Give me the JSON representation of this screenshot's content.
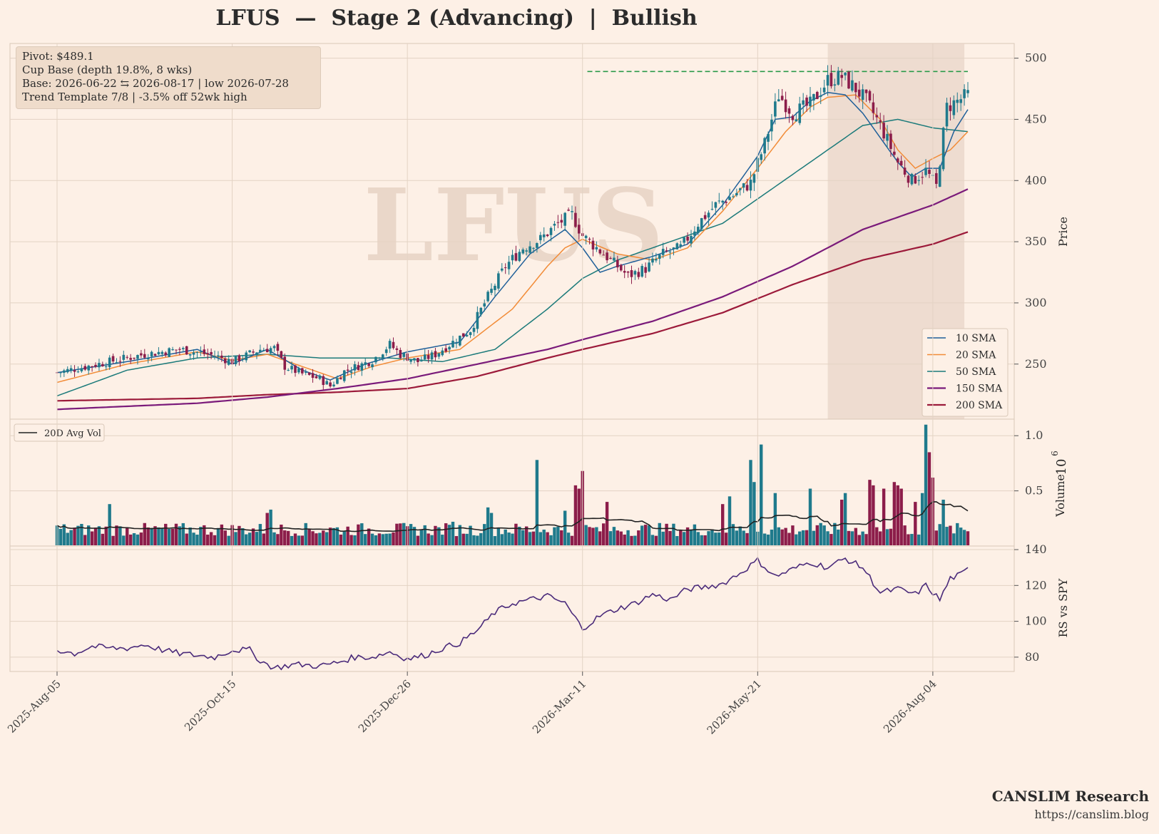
{
  "title": "LFUS  —  Stage 2 (Advancing)  |  Bullish",
  "watermark": "LFUS",
  "info_box": {
    "line1": "Pivot: $489.1",
    "line2": "Cup Base  (depth 19.8%, 8 wks)",
    "line3": "Base: 2026-06-22 ⇆ 2026-08-17  |  low 2026-07-28",
    "line4": "Trend Template 7/8  |  -3.5% off 52wk high"
  },
  "brand": {
    "name": "CANSLIM Research",
    "url": "https://canslim.blog"
  },
  "colors": {
    "background": "#fdf0e6",
    "up_candle": "#1f7a8c",
    "down_candle": "#8c1d4a",
    "sma10": "#1f5f99",
    "sma20": "#f28c38",
    "sma50": "#1b7a7a",
    "sma150": "#7a1a7a",
    "sma200": "#9c1a3a",
    "pivot_line": "#2a9a4a",
    "rs_line": "#4a2a7a",
    "avg_vol": "#222222",
    "base_shade": "#e8d6c8"
  },
  "chart_data": {
    "type": "candlestick",
    "x_ticks": [
      "2025-Aug-05",
      "2025-Oct-15",
      "2025-Dec-26",
      "2026-Mar-11",
      "2026-May-21",
      "2026-Aug-04"
    ],
    "x_tick_positions": [
      0,
      50,
      100,
      150,
      200,
      250
    ],
    "price_panel": {
      "ylabel": "Price",
      "ylim": [
        205,
        512
      ],
      "yticks": [
        250,
        300,
        350,
        400,
        450,
        500
      ],
      "pivot": 489.1,
      "base_shade_index_range": [
        220,
        259
      ],
      "price_anchors": [
        [
          0,
          243
        ],
        [
          15,
          252
        ],
        [
          25,
          258
        ],
        [
          35,
          262
        ],
        [
          45,
          257
        ],
        [
          50,
          252
        ],
        [
          58,
          262
        ],
        [
          62,
          263
        ],
        [
          65,
          248
        ],
        [
          70,
          242
        ],
        [
          75,
          238
        ],
        [
          78,
          232
        ],
        [
          82,
          244
        ],
        [
          90,
          253
        ],
        [
          95,
          266
        ],
        [
          98,
          258
        ],
        [
          103,
          252
        ],
        [
          108,
          258
        ],
        [
          113,
          268
        ],
        [
          118,
          278
        ],
        [
          123,
          305
        ],
        [
          128,
          330
        ],
        [
          133,
          345
        ],
        [
          138,
          352
        ],
        [
          143,
          365
        ],
        [
          147,
          372
        ],
        [
          150,
          355
        ],
        [
          154,
          345
        ],
        [
          158,
          335
        ],
        [
          163,
          322
        ],
        [
          168,
          328
        ],
        [
          173,
          340
        ],
        [
          178,
          345
        ],
        [
          183,
          365
        ],
        [
          188,
          380
        ],
        [
          193,
          388
        ],
        [
          198,
          398
        ],
        [
          202,
          430
        ],
        [
          206,
          470
        ],
        [
          210,
          455
        ],
        [
          215,
          462
        ],
        [
          220,
          482
        ],
        [
          224,
          485
        ],
        [
          228,
          475
        ],
        [
          231,
          465
        ],
        [
          235,
          445
        ],
        [
          240,
          415
        ],
        [
          244,
          400
        ],
        [
          248,
          408
        ],
        [
          251,
          395
        ],
        [
          254,
          460
        ],
        [
          257,
          465
        ],
        [
          260,
          470
        ]
      ],
      "sma10_anchors": [
        [
          0,
          243
        ],
        [
          20,
          252
        ],
        [
          40,
          262
        ],
        [
          50,
          250
        ],
        [
          60,
          262
        ],
        [
          70,
          245
        ],
        [
          78,
          237
        ],
        [
          88,
          250
        ],
        [
          100,
          260
        ],
        [
          115,
          268
        ],
        [
          125,
          305
        ],
        [
          135,
          340
        ],
        [
          145,
          360
        ],
        [
          150,
          345
        ],
        [
          155,
          325
        ],
        [
          160,
          330
        ],
        [
          170,
          338
        ],
        [
          180,
          348
        ],
        [
          190,
          380
        ],
        [
          200,
          420
        ],
        [
          205,
          450
        ],
        [
          210,
          452
        ],
        [
          215,
          465
        ],
        [
          220,
          472
        ],
        [
          225,
          470
        ],
        [
          230,
          455
        ],
        [
          235,
          435
        ],
        [
          240,
          415
        ],
        [
          244,
          403
        ],
        [
          248,
          410
        ],
        [
          252,
          410
        ],
        [
          256,
          440
        ],
        [
          260,
          458
        ]
      ],
      "sma20_anchors": [
        [
          0,
          235
        ],
        [
          20,
          250
        ],
        [
          40,
          260
        ],
        [
          50,
          253
        ],
        [
          60,
          258
        ],
        [
          70,
          248
        ],
        [
          80,
          238
        ],
        [
          90,
          248
        ],
        [
          100,
          255
        ],
        [
          115,
          262
        ],
        [
          130,
          295
        ],
        [
          140,
          330
        ],
        [
          145,
          345
        ],
        [
          150,
          352
        ],
        [
          160,
          340
        ],
        [
          170,
          335
        ],
        [
          180,
          345
        ],
        [
          190,
          375
        ],
        [
          200,
          410
        ],
        [
          208,
          440
        ],
        [
          215,
          460
        ],
        [
          220,
          468
        ],
        [
          228,
          470
        ],
        [
          235,
          450
        ],
        [
          240,
          425
        ],
        [
          245,
          410
        ],
        [
          250,
          418
        ],
        [
          255,
          425
        ],
        [
          260,
          440
        ]
      ],
      "sma50_anchors": [
        [
          0,
          224
        ],
        [
          20,
          245
        ],
        [
          40,
          255
        ],
        [
          60,
          258
        ],
        [
          75,
          255
        ],
        [
          95,
          255
        ],
        [
          110,
          252
        ],
        [
          125,
          262
        ],
        [
          140,
          295
        ],
        [
          150,
          320
        ],
        [
          160,
          335
        ],
        [
          170,
          345
        ],
        [
          180,
          355
        ],
        [
          190,
          365
        ],
        [
          200,
          385
        ],
        [
          210,
          405
        ],
        [
          220,
          425
        ],
        [
          230,
          445
        ],
        [
          240,
          450
        ],
        [
          250,
          443
        ],
        [
          260,
          440
        ]
      ],
      "sma150_anchors": [
        [
          0,
          213
        ],
        [
          40,
          218
        ],
        [
          60,
          223
        ],
        [
          80,
          230
        ],
        [
          100,
          238
        ],
        [
          120,
          250
        ],
        [
          140,
          262
        ],
        [
          150,
          270
        ],
        [
          170,
          285
        ],
        [
          190,
          305
        ],
        [
          210,
          330
        ],
        [
          230,
          360
        ],
        [
          250,
          380
        ],
        [
          260,
          393
        ]
      ],
      "sma200_anchors": [
        [
          0,
          220
        ],
        [
          40,
          222
        ],
        [
          60,
          225
        ],
        [
          80,
          227
        ],
        [
          100,
          230
        ],
        [
          120,
          240
        ],
        [
          140,
          255
        ],
        [
          150,
          262
        ],
        [
          170,
          275
        ],
        [
          190,
          292
        ],
        [
          210,
          315
        ],
        [
          230,
          335
        ],
        [
          250,
          348
        ],
        [
          260,
          358
        ]
      ],
      "legend": [
        "10 SMA",
        "20 SMA",
        "50 SMA",
        "150 SMA",
        "200 SMA"
      ]
    },
    "volume_panel": {
      "ylabel": "Volume",
      "unit_label": "10",
      "unit_exponent": "6",
      "ylim": [
        0,
        1.15
      ],
      "yticks": [
        "1.0",
        "0.5"
      ],
      "ytick_values": [
        1.0,
        0.5
      ],
      "legend": "20D Avg Vol",
      "spikes": [
        [
          15,
          0.38
        ],
        [
          60,
          0.3
        ],
        [
          61,
          0.33
        ],
        [
          113,
          0.22
        ],
        [
          123,
          0.35
        ],
        [
          124,
          0.3
        ],
        [
          137,
          0.78
        ],
        [
          145,
          0.32
        ],
        [
          148,
          0.55
        ],
        [
          149,
          0.52
        ],
        [
          150,
          0.68
        ],
        [
          157,
          0.4
        ],
        [
          190,
          0.38
        ],
        [
          192,
          0.45
        ],
        [
          198,
          0.78
        ],
        [
          199,
          0.58
        ],
        [
          201,
          0.92
        ],
        [
          205,
          0.48
        ],
        [
          215,
          0.52
        ],
        [
          224,
          0.42
        ],
        [
          225,
          0.48
        ],
        [
          232,
          0.6
        ],
        [
          233,
          0.55
        ],
        [
          236,
          0.52
        ],
        [
          239,
          0.58
        ],
        [
          240,
          0.55
        ],
        [
          241,
          0.52
        ],
        [
          245,
          0.4
        ],
        [
          247,
          0.48
        ],
        [
          248,
          1.1
        ],
        [
          249,
          0.85
        ],
        [
          250,
          0.62
        ],
        [
          253,
          0.42
        ]
      ]
    },
    "rs_panel": {
      "ylabel": "RS vs SPY",
      "ylim": [
        72,
        142
      ],
      "yticks": [
        80,
        100,
        120,
        140
      ],
      "anchors": [
        [
          0,
          84
        ],
        [
          5,
          82
        ],
        [
          10,
          86
        ],
        [
          15,
          85
        ],
        [
          20,
          85
        ],
        [
          25,
          87
        ],
        [
          30,
          84
        ],
        [
          35,
          82
        ],
        [
          40,
          81
        ],
        [
          45,
          80
        ],
        [
          50,
          84
        ],
        [
          55,
          84
        ],
        [
          58,
          78
        ],
        [
          62,
          74
        ],
        [
          68,
          76
        ],
        [
          75,
          75
        ],
        [
          80,
          77
        ],
        [
          85,
          80
        ],
        [
          90,
          80
        ],
        [
          95,
          83
        ],
        [
          100,
          79
        ],
        [
          105,
          81
        ],
        [
          110,
          85
        ],
        [
          115,
          88
        ],
        [
          120,
          95
        ],
        [
          125,
          105
        ],
        [
          130,
          110
        ],
        [
          135,
          112
        ],
        [
          140,
          114
        ],
        [
          145,
          110
        ],
        [
          150,
          96
        ],
        [
          155,
          103
        ],
        [
          160,
          107
        ],
        [
          165,
          110
        ],
        [
          170,
          115
        ],
        [
          175,
          112
        ],
        [
          180,
          118
        ],
        [
          185,
          119
        ],
        [
          190,
          121
        ],
        [
          195,
          127
        ],
        [
          200,
          134
        ],
        [
          205,
          125
        ],
        [
          210,
          129
        ],
        [
          215,
          133
        ],
        [
          220,
          130
        ],
        [
          225,
          135
        ],
        [
          230,
          130
        ],
        [
          235,
          116
        ],
        [
          240,
          118
        ],
        [
          245,
          115
        ],
        [
          248,
          120
        ],
        [
          252,
          112
        ],
        [
          255,
          124
        ],
        [
          258,
          126
        ],
        [
          260,
          129
        ]
      ]
    }
  }
}
